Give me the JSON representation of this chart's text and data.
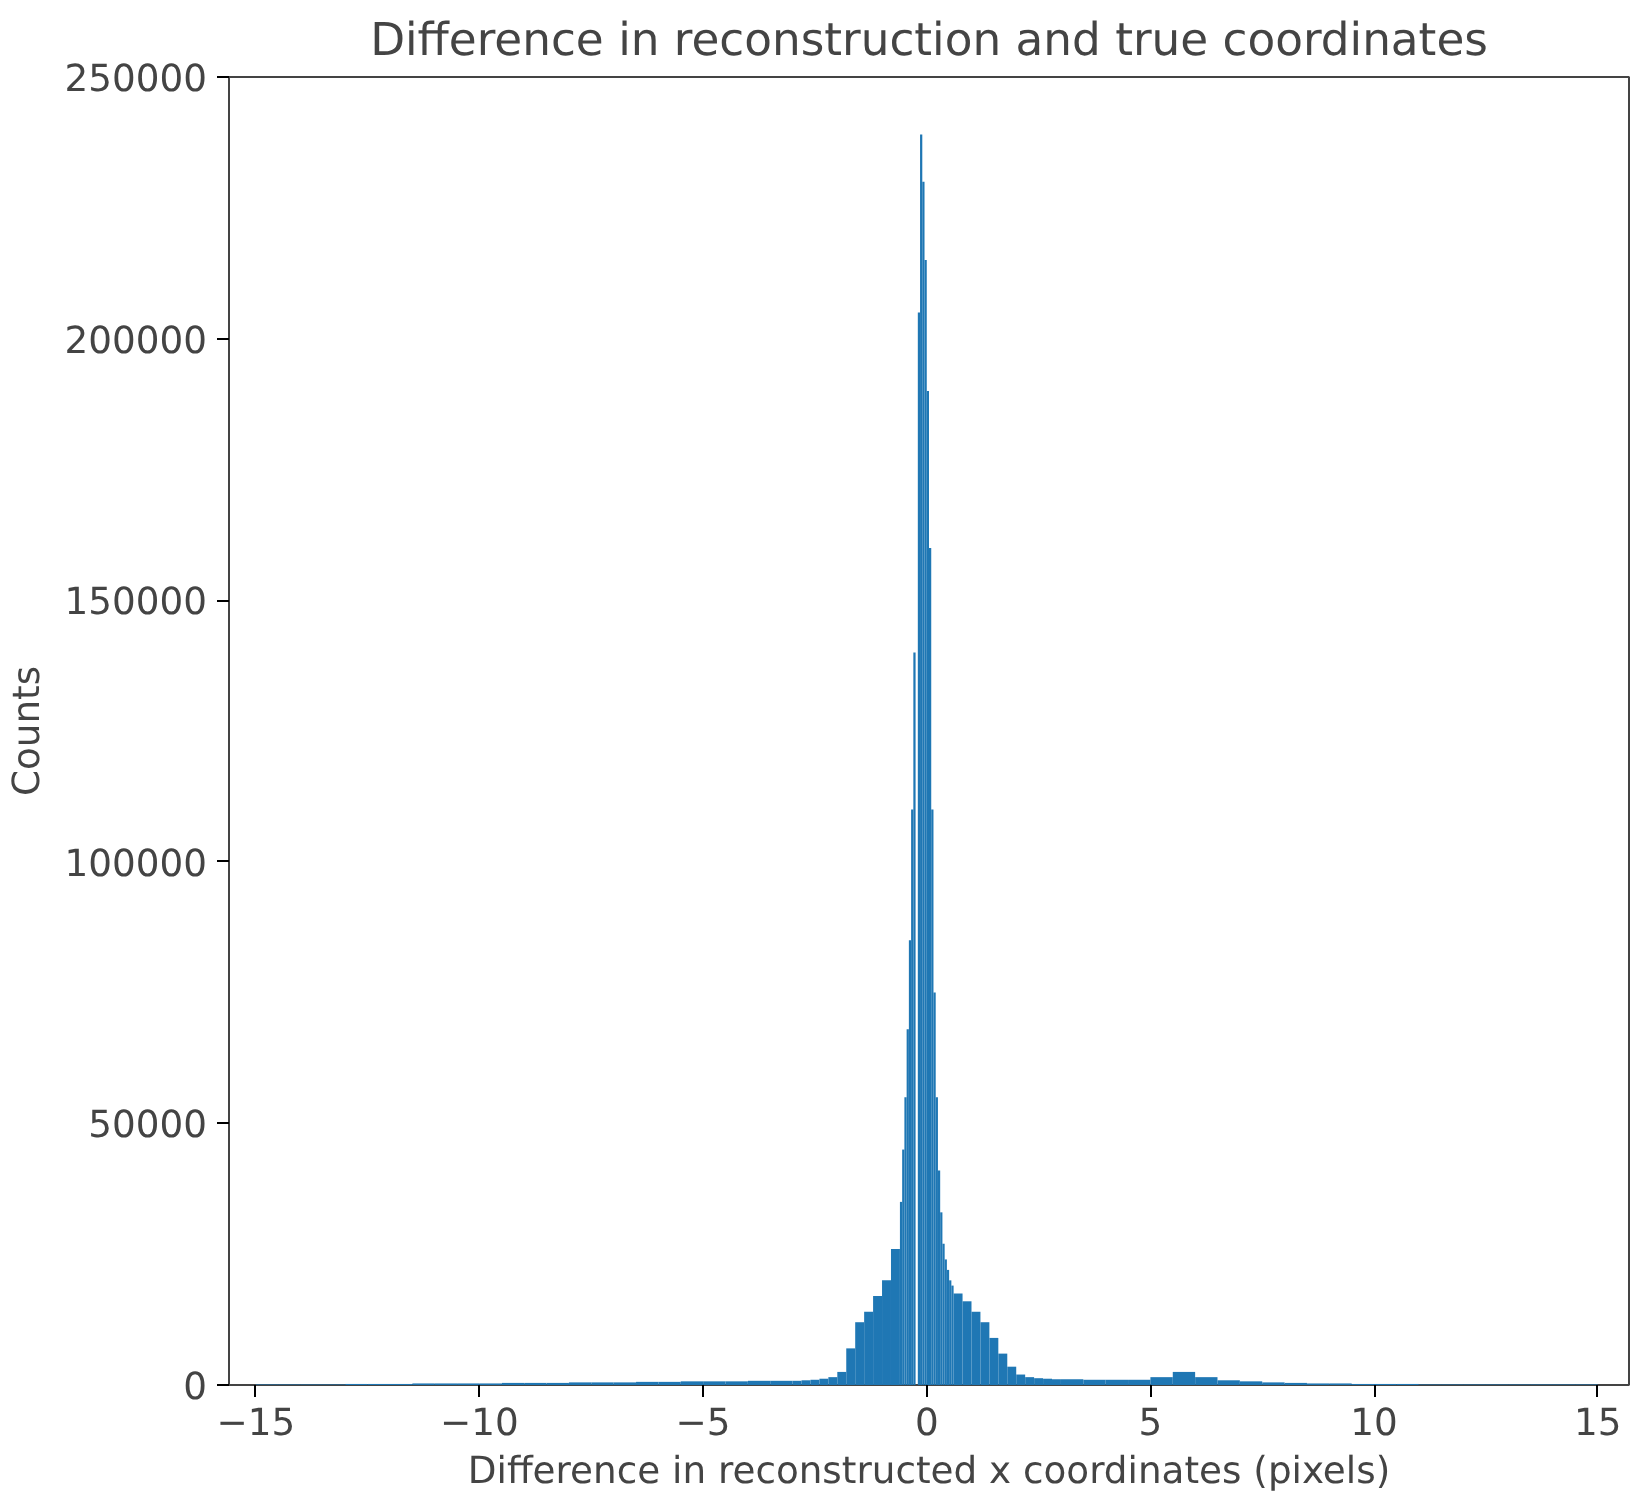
{
  "chart_data": {
    "type": "histogram",
    "title": "Difference in reconstruction and true coordinates",
    "xlabel": "Difference in reconstructed x coordinates (pixels)",
    "ylabel": "Counts",
    "color": "#1f77b4",
    "bins": [
      -15,
      -14.5,
      -14,
      -13.5,
      -13,
      -12.5,
      -12,
      -11.5,
      -11,
      -10.5,
      -10,
      -9.5,
      -9,
      -8.5,
      -8,
      -7.5,
      -7,
      -6.5,
      -6,
      -5.5,
      -5,
      -4.5,
      -4,
      -3.5,
      -3,
      -2.8,
      -2.6,
      -2.4,
      -2.2,
      -2,
      -1.8,
      -1.6,
      -1.4,
      -1.2,
      -1,
      -0.8,
      -0.6,
      -0.55,
      -0.5,
      -0.45,
      -0.4,
      -0.35,
      -0.3,
      -0.25,
      -0.2,
      -0.15,
      -0.1,
      -0.05,
      0,
      0.05,
      0.1,
      0.15,
      0.2,
      0.25,
      0.3,
      0.35,
      0.4,
      0.45,
      0.5,
      0.55,
      0.6,
      0.8,
      1,
      1.2,
      1.4,
      1.6,
      1.8,
      2,
      2.2,
      2.4,
      2.6,
      2.8,
      3,
      3.5,
      4,
      4.5,
      5,
      5.5,
      6,
      6.5,
      7,
      7.5,
      8,
      8.5,
      9,
      9.5,
      10,
      10.5,
      11,
      11.5,
      12,
      12.5,
      13,
      13.5,
      14,
      14.5,
      15
    ],
    "values": [
      100,
      100,
      100,
      100,
      200,
      200,
      200,
      300,
      300,
      300,
      300,
      400,
      400,
      400,
      500,
      500,
      500,
      600,
      600,
      700,
      700,
      700,
      800,
      800,
      800,
      900,
      1000,
      1200,
      1500,
      2500,
      7000,
      12000,
      14000,
      17000,
      20000,
      26000,
      35000,
      45000,
      55000,
      68000,
      85000,
      110000,
      140000,
      0,
      205000,
      239000,
      230000,
      215000,
      190000,
      160000,
      110000,
      75000,
      55000,
      41000,
      33000,
      27000,
      24000,
      22000,
      20000,
      19000,
      17500,
      16000,
      14000,
      12000,
      9000,
      6000,
      3500,
      2000,
      1500,
      1300,
      1200,
      1100,
      1100,
      1000,
      1000,
      1000,
      1500,
      2500,
      1500,
      900,
      700,
      500,
      400,
      300,
      300,
      200,
      200,
      200,
      100,
      100,
      100,
      100,
      100,
      100,
      100,
      100
    ],
    "xlim": [
      -15.6,
      15.7
    ],
    "ylim": [
      0,
      250000
    ],
    "xticks": [
      {
        "value": -15,
        "label": "−15"
      },
      {
        "value": -10,
        "label": "−10"
      },
      {
        "value": -5,
        "label": "−5"
      },
      0,
      5,
      10,
      15
    ],
    "yticks": [
      0,
      50000,
      100000,
      150000,
      200000,
      250000
    ],
    "grid": false
  }
}
